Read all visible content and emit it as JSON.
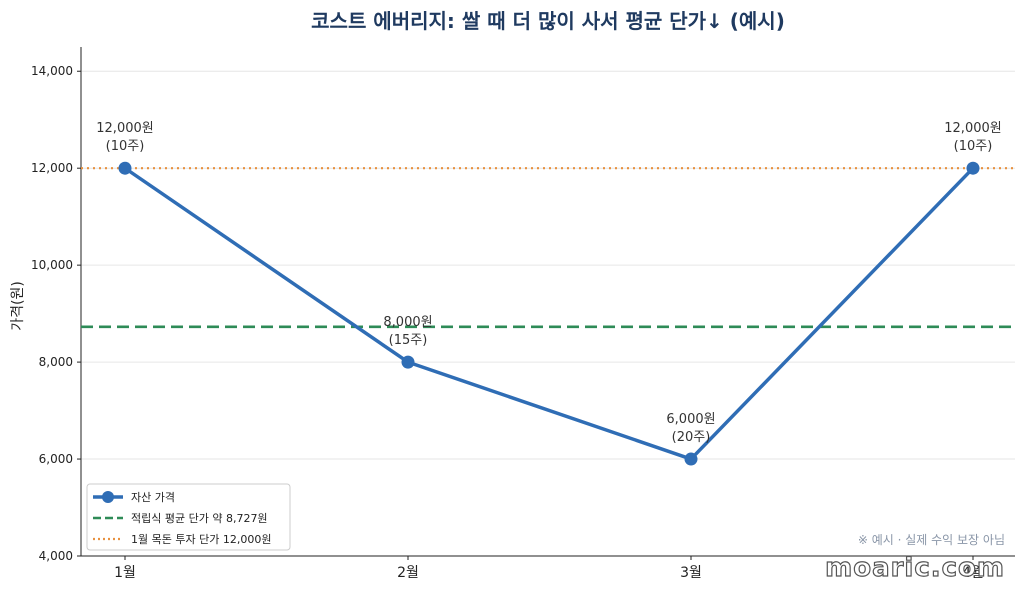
{
  "chart_data": {
    "type": "line",
    "title": "코스트 에버리지: 쌀 때 더 많이 사서 평균 단가↓ (예시)",
    "xlabel": "",
    "ylabel": "가격(원)",
    "categories": [
      "1월",
      "2월",
      "3월",
      "4월"
    ],
    "series": [
      {
        "name": "자산 가격",
        "values": [
          12000,
          8000,
          6000,
          12000
        ],
        "color": "#2f6db5"
      }
    ],
    "data_labels": [
      [
        "12,000원",
        "(10주)"
      ],
      [
        "8,000원",
        "(15주)"
      ],
      [
        "6,000원",
        "(20주)"
      ],
      [
        "12,000원",
        "(10주)"
      ]
    ],
    "reference_lines": [
      {
        "name": "적립식 평균 단가 약 8,727원",
        "value": 8727,
        "style": "dashed",
        "color": "#2e8b57"
      },
      {
        "name": "1월 목돈 투자 단가 12,000원",
        "value": 12000,
        "style": "dotted",
        "color": "#e8913f"
      }
    ],
    "ylim": [
      4000,
      14500
    ],
    "yticks": [
      4000,
      6000,
      8000,
      10000,
      12000,
      14000
    ],
    "ytick_labels": [
      "4,000",
      "6,000",
      "8,000",
      "10,000",
      "12,000",
      "14,000"
    ],
    "grid": "horizontal",
    "legend_position": "lower-left"
  },
  "note": "※ 예시 · 실제 수익 보장 아님",
  "watermark": "moaric.com"
}
